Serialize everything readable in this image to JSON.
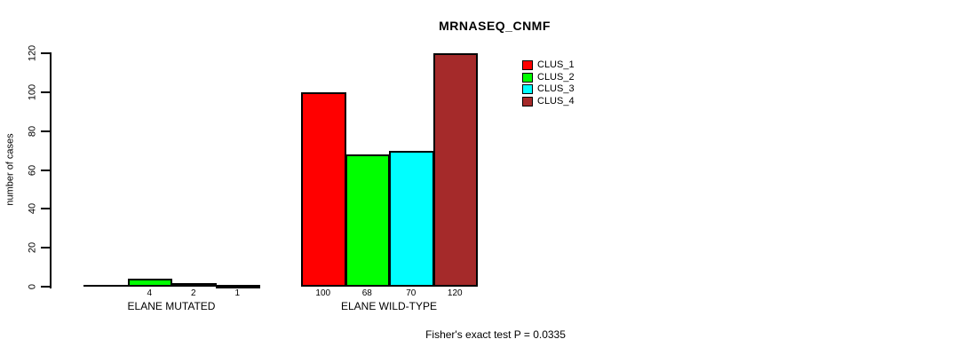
{
  "title": "MRNASEQ_CNMF",
  "y_axis": {
    "label": "number of cases",
    "ticks": [
      "0",
      "20",
      "40",
      "60",
      "80",
      "100",
      "120"
    ]
  },
  "groups": [
    {
      "label": "ELANE MUTATED",
      "bars": [
        {
          "cluster": "CLUS_1",
          "value": 0,
          "value_label": ""
        },
        {
          "cluster": "CLUS_2",
          "value": 4,
          "value_label": "4"
        },
        {
          "cluster": "CLUS_3",
          "value": 2,
          "value_label": "2"
        },
        {
          "cluster": "CLUS_4",
          "value": 1,
          "value_label": "1"
        }
      ]
    },
    {
      "label": "ELANE WILD-TYPE",
      "bars": [
        {
          "cluster": "CLUS_1",
          "value": 100,
          "value_label": "100"
        },
        {
          "cluster": "CLUS_2",
          "value": 68,
          "value_label": "68"
        },
        {
          "cluster": "CLUS_3",
          "value": 70,
          "value_label": "70"
        },
        {
          "cluster": "CLUS_4",
          "value": 120,
          "value_label": "120"
        }
      ]
    }
  ],
  "legend": {
    "items": [
      {
        "label": "CLUS_1",
        "color": "#ff0000"
      },
      {
        "label": "CLUS_2",
        "color": "#00ff00"
      },
      {
        "label": "CLUS_3",
        "color": "#00ffff"
      },
      {
        "label": "CLUS_4",
        "color": "#a52a2a"
      }
    ]
  },
  "footnote": "Fisher's exact test P = 0.0335",
  "colors": {
    "background": "#ffffff",
    "axis": "#000000",
    "text": "#000000",
    "clus_1": "#ff0000",
    "clus_2": "#00ff00",
    "clus_3": "#00ffff",
    "clus_4": "#a52a2a"
  },
  "chart_data": {
    "type": "bar",
    "title": "MRNASEQ_CNMF",
    "xlabel": "",
    "ylabel": "number of cases",
    "categories": [
      "ELANE MUTATED",
      "ELANE WILD-TYPE"
    ],
    "series": [
      {
        "name": "CLUS_1",
        "color": "#ff0000",
        "values": [
          0,
          100
        ]
      },
      {
        "name": "CLUS_2",
        "color": "#00ff00",
        "values": [
          4,
          68
        ]
      },
      {
        "name": "CLUS_3",
        "color": "#00ffff",
        "values": [
          2,
          70
        ]
      },
      {
        "name": "CLUS_4",
        "color": "#a52a2a",
        "values": [
          1,
          120
        ]
      }
    ],
    "bar_value_labels": [
      [
        "",
        "4",
        "2",
        "1"
      ],
      [
        "100",
        "68",
        "70",
        "120"
      ]
    ],
    "ylim": [
      0,
      120
    ],
    "yticks": [
      0,
      20,
      40,
      60,
      80,
      100,
      120
    ],
    "grid": false,
    "legend_position": "inside-top-right",
    "annotation": "Fisher's exact test P = 0.0335"
  }
}
